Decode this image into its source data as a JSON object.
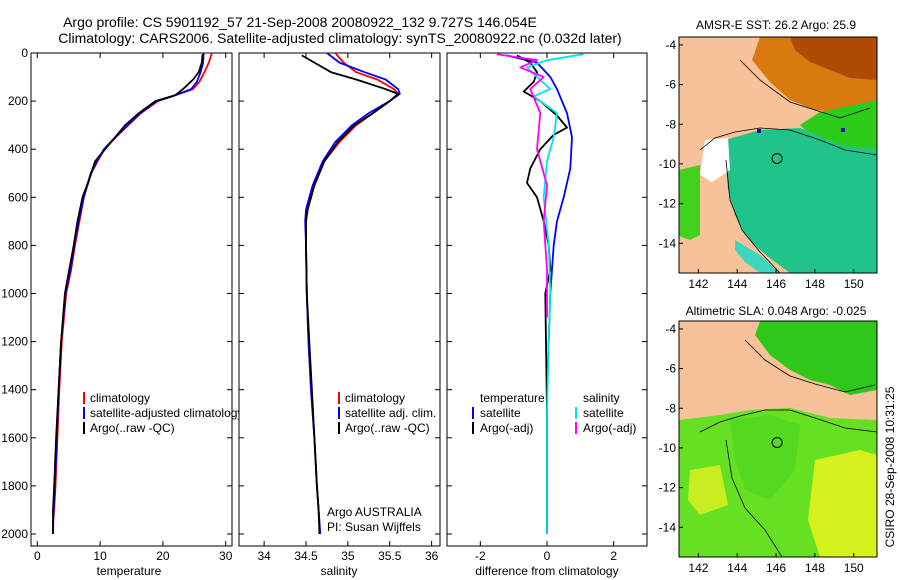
{
  "header": {
    "line1": "Argo profile: CS 5901192_57 21-Sep-2008 20080922_132 9.727S 146.054E",
    "line2": "Climatology: CARS2006. Satellite-adjusted climatology: synTS_20080922.nc (0.032d later)"
  },
  "side_label": "CSIRO 28-Sep-2008 10:31:25",
  "colors": {
    "climatology": "#ff0000",
    "satellite": "#0000ff",
    "argo": "#000000",
    "cyan": "#00e5e5",
    "magenta": "#ff00ff",
    "land": "#f7c199"
  },
  "chart_data": [
    {
      "type": "line",
      "xlabel": "temperature",
      "ylabel": "",
      "xlim": [
        -1,
        31
      ],
      "ylim": [
        2050,
        0
      ],
      "xticks": [
        0,
        10,
        20,
        30
      ],
      "yticks": [
        0,
        200,
        400,
        600,
        800,
        1000,
        1200,
        1400,
        1600,
        1800,
        2000
      ],
      "legend_location": "lower-right",
      "legend": [
        "climatology",
        "satellite-adjusted climatology",
        "Argo(..raw -QC)"
      ],
      "series": [
        {
          "name": "climatology",
          "color": "#ff0000",
          "x": [
            27.8,
            27.3,
            26.6,
            25.8,
            24.8,
            21.5,
            19.2,
            16.5,
            14.5,
            12.5,
            10.7,
            9.6,
            8.6,
            7.4,
            6.7,
            6.0,
            5.4,
            4.6,
            3.9,
            3.5,
            3.2,
            2.9,
            2.7,
            2.5
          ],
          "y": [
            0,
            40,
            80,
            120,
            150,
            180,
            200,
            250,
            300,
            350,
            400,
            450,
            500,
            600,
            700,
            800,
            900,
            1000,
            1200,
            1400,
            1600,
            1800,
            1900,
            1950
          ]
        },
        {
          "name": "satellite-adjusted climatology",
          "color": "#0000ff",
          "x": [
            26.5,
            26.4,
            26.0,
            25.4,
            24.5,
            21.5,
            19.0,
            16.4,
            14.4,
            12.4,
            10.6,
            9.5,
            8.5,
            7.4,
            6.6,
            5.9,
            5.3,
            4.5,
            3.8,
            3.4,
            3.1,
            2.8,
            2.6,
            2.5
          ],
          "y": [
            0,
            40,
            80,
            120,
            150,
            180,
            200,
            250,
            300,
            350,
            400,
            450,
            500,
            600,
            700,
            800,
            900,
            1000,
            1200,
            1400,
            1600,
            1800,
            1900,
            2000
          ]
        },
        {
          "name": "Argo(..raw -QC)",
          "color": "#000000",
          "x": [
            26.3,
            26.2,
            25.7,
            24.8,
            23.2,
            22.0,
            18.8,
            16.2,
            14.0,
            12.4,
            10.8,
            9.2,
            8.2,
            7.2,
            6.4,
            5.8,
            5.1,
            4.4,
            3.8,
            3.4,
            3.0,
            2.7,
            2.5,
            2.5
          ],
          "y": [
            5,
            40,
            80,
            110,
            150,
            175,
            200,
            250,
            300,
            350,
            400,
            450,
            530,
            600,
            700,
            800,
            900,
            1000,
            1200,
            1400,
            1600,
            1800,
            1900,
            2000
          ]
        }
      ]
    },
    {
      "type": "line",
      "xlabel": "salinity",
      "ylabel": "",
      "xlim": [
        33.7,
        36.1
      ],
      "ylim": [
        2050,
        0
      ],
      "xticks": [
        34,
        34.5,
        35,
        35.5,
        36
      ],
      "legend_location": "lower-right",
      "legend": [
        "climatology",
        "satellite adj. clim.",
        "Argo(..raw -QC)"
      ],
      "annotations": [
        "Argo AUSTRALIA",
        "PI: Susan Wijffels"
      ],
      "series": [
        {
          "name": "climatology",
          "color": "#ff0000",
          "x": [
            34.85,
            34.95,
            35.1,
            35.35,
            35.55,
            35.6,
            35.5,
            35.3,
            35.1,
            34.9,
            34.72,
            34.6,
            34.52,
            34.5,
            34.5,
            34.51,
            34.53,
            34.56,
            34.6,
            34.63,
            34.65,
            34.67
          ],
          "y": [
            0,
            40,
            80,
            110,
            150,
            170,
            200,
            250,
            300,
            370,
            450,
            550,
            650,
            700,
            800,
            1000,
            1200,
            1400,
            1600,
            1800,
            1900,
            2000
          ]
        },
        {
          "name": "satellite adj. clim.",
          "color": "#0000ff",
          "x": [
            34.75,
            34.9,
            35.2,
            35.45,
            35.6,
            35.62,
            35.5,
            35.25,
            35.05,
            34.85,
            34.7,
            34.58,
            34.5,
            34.49,
            34.5,
            34.51,
            34.53,
            34.56,
            34.6,
            34.63,
            34.65,
            34.67
          ],
          "y": [
            0,
            40,
            80,
            110,
            150,
            170,
            200,
            250,
            300,
            370,
            450,
            550,
            650,
            700,
            800,
            1000,
            1200,
            1400,
            1600,
            1800,
            1900,
            2000
          ]
        },
        {
          "name": "Argo(..raw -QC)",
          "color": "#000000",
          "x": [
            34.45,
            34.6,
            34.8,
            35.1,
            35.45,
            35.6,
            35.5,
            35.3,
            35.08,
            34.88,
            34.72,
            34.6,
            34.52,
            34.5,
            34.5,
            34.51,
            34.54,
            34.57,
            34.6,
            34.63,
            34.65,
            34.66
          ],
          "y": [
            10,
            40,
            80,
            110,
            150,
            170,
            200,
            250,
            300,
            370,
            450,
            550,
            650,
            700,
            800,
            1000,
            1200,
            1400,
            1600,
            1800,
            1900,
            2000
          ]
        }
      ]
    },
    {
      "type": "line",
      "xlabel": "difference from climatology",
      "ylabel": "",
      "xlim": [
        -3,
        3
      ],
      "ylim": [
        2050,
        0
      ],
      "xticks": [
        -2,
        0,
        2
      ],
      "legend_location": "lower-center",
      "legend_headers": [
        "temperature",
        "salinity"
      ],
      "legend": [
        "satellite",
        "Argo(-adj)",
        "satellite",
        "Argo(-adj)"
      ],
      "series": [
        {
          "name": "satellite",
          "color": "#0000ff",
          "x": [
            -1.2,
            -0.3,
            0.1,
            0.3,
            0.45,
            0.6,
            0.75,
            0.7,
            0.6,
            0.5,
            0.3,
            0.2,
            0.15,
            0.1,
            0.05,
            0.0,
            0.0,
            0.0
          ],
          "y": [
            10,
            40,
            100,
            150,
            200,
            250,
            350,
            480,
            540,
            600,
            700,
            800,
            900,
            1000,
            1200,
            1400,
            1600,
            2000
          ]
        },
        {
          "name": "Argo(-adj)",
          "color": "#000000",
          "x": [
            -0.9,
            -0.5,
            -0.3,
            -0.4,
            -0.7,
            -0.2,
            0.3,
            0.6,
            0.2,
            -0.2,
            -0.5,
            -0.6,
            -0.3,
            -0.1,
            0.05,
            0.1,
            -0.05,
            0.0,
            0.0
          ],
          "y": [
            10,
            40,
            80,
            120,
            160,
            200,
            260,
            310,
            340,
            400,
            480,
            540,
            600,
            700,
            800,
            900,
            1000,
            1500,
            2000
          ]
        },
        {
          "name": "satellite",
          "color": "#00e5e5",
          "x": [
            1.1,
            0.0,
            -0.6,
            -0.3,
            0.1,
            -0.4,
            0.3,
            0.2,
            0.0,
            -0.1,
            0.05,
            0.1,
            0.05,
            0.0,
            0.0
          ],
          "y": [
            5,
            30,
            60,
            100,
            150,
            180,
            250,
            350,
            450,
            600,
            800,
            1000,
            1200,
            1500,
            2000
          ]
        },
        {
          "name": "Argo(-adj)",
          "color": "#ff00ff",
          "x": [
            -1.5,
            -0.3,
            -0.8,
            -0.1,
            -0.5,
            -0.2,
            -0.3,
            0.0,
            -0.1,
            0.0,
            0.0
          ],
          "y": [
            5,
            30,
            60,
            100,
            150,
            250,
            400,
            550,
            700,
            900,
            1100
          ]
        }
      ]
    },
    {
      "type": "heatmap",
      "title": "AMSR-E SST: 26.2 Argo: 25.9",
      "xlim": [
        141,
        151.2
      ],
      "ylim": [
        -15.5,
        -3.6
      ],
      "xticks": [
        142,
        144,
        146,
        148,
        150
      ],
      "yticks": [
        -4,
        -6,
        -8,
        -10,
        -12,
        -14
      ],
      "marker": {
        "lon": 146.054,
        "lat": -9.727
      }
    },
    {
      "type": "heatmap",
      "title": "Altimetric SLA: 0.048 Argo: -0.025",
      "xlim": [
        141,
        151.2
      ],
      "ylim": [
        -15.5,
        -3.6
      ],
      "xticks": [
        142,
        144,
        146,
        148,
        150
      ],
      "yticks": [
        -4,
        -6,
        -8,
        -10,
        -12,
        -14
      ],
      "marker": {
        "lon": 146.054,
        "lat": -9.727
      }
    }
  ]
}
